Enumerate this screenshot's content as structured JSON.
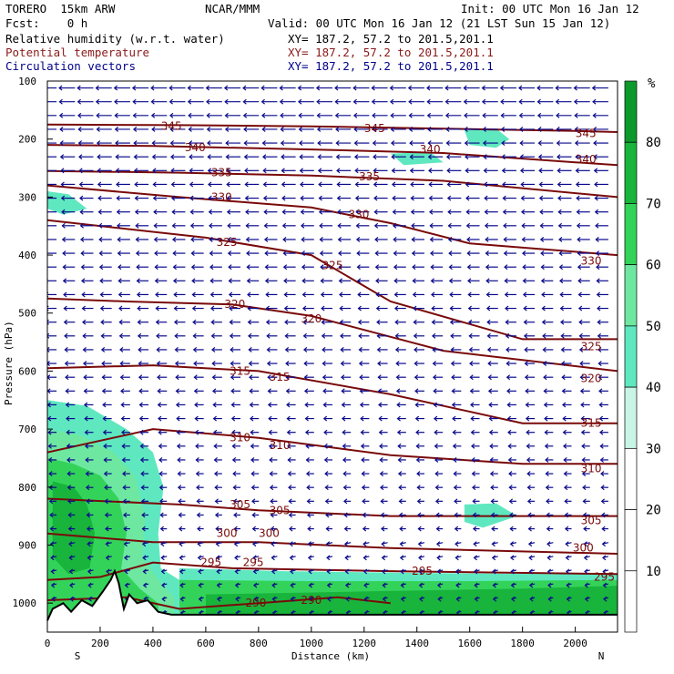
{
  "header": {
    "model": "TORERO  15km ARW",
    "org": "NCAR/MMM",
    "init": "Init: 00 UTC Mon 16 Jan 12",
    "fcst": "Fcst:    0 h",
    "valid": "Valid: 00 UTC Mon 16 Jan 12 (21 LST Sun 15 Jan 12)",
    "fields": [
      {
        "label": "Relative humidity (w.r.t. water)",
        "xy": "XY= 187.2, 57.2 to 201.5,201.1",
        "color": "#000000"
      },
      {
        "label": "Potential temperature",
        "xy": "XY= 187.2, 57.2 to 201.5,201.1",
        "color": "#8b1a1a"
      },
      {
        "label": "Circulation vectors",
        "xy": "XY= 187.2, 57.2 to 201.5,201.1",
        "color": "#00008b"
      }
    ]
  },
  "chart_data": {
    "type": "heatmap",
    "xlabel": "Distance (km)",
    "ylabel": "Pressure (hPa)",
    "xlim": [
      0,
      2160
    ],
    "ylim": [
      1050,
      100
    ],
    "x_ticks": [
      0,
      200,
      400,
      600,
      800,
      1000,
      1200,
      1400,
      1600,
      1800,
      2000
    ],
    "y_ticks": [
      100,
      200,
      300,
      400,
      500,
      600,
      700,
      800,
      900,
      1000
    ],
    "x_end_labels": [
      "S",
      "N"
    ],
    "colorbar": {
      "unit": "%",
      "levels": [
        10,
        20,
        30,
        40,
        50,
        60,
        70,
        80
      ],
      "colors": [
        "#ffffff",
        "#ffffff",
        "#ffffff",
        "#c8f5e6",
        "#5fe8c0",
        "#6ee8a0",
        "#33d35a",
        "#18b43c",
        "#0c9a2c"
      ]
    },
    "colors": {
      "theta": "#7a0a0a",
      "vectors": "#0a0a8c",
      "terrain": "#000000"
    },
    "rh_regions": [
      {
        "level": 40,
        "polygon": [
          [
            0,
            650
          ],
          [
            150,
            660
          ],
          [
            300,
            700
          ],
          [
            400,
            740
          ],
          [
            440,
            800
          ],
          [
            420,
            880
          ],
          [
            430,
            940
          ],
          [
            500,
            960
          ],
          [
            500,
            1030
          ],
          [
            0,
            1030
          ]
        ]
      },
      {
        "level": 50,
        "polygon": [
          [
            0,
            700
          ],
          [
            120,
            710
          ],
          [
            250,
            740
          ],
          [
            330,
            780
          ],
          [
            370,
            850
          ],
          [
            360,
            920
          ],
          [
            420,
            960
          ],
          [
            480,
            990
          ],
          [
            480,
            1030
          ],
          [
            0,
            1030
          ]
        ]
      },
      {
        "level": 60,
        "polygon": [
          [
            0,
            750
          ],
          [
            100,
            760
          ],
          [
            200,
            780
          ],
          [
            270,
            820
          ],
          [
            300,
            880
          ],
          [
            280,
            940
          ],
          [
            350,
            975
          ],
          [
            420,
            1000
          ],
          [
            420,
            1030
          ],
          [
            0,
            1030
          ]
        ]
      },
      {
        "level": 70,
        "polygon": [
          [
            20,
            790
          ],
          [
            100,
            800
          ],
          [
            150,
            830
          ],
          [
            180,
            880
          ],
          [
            160,
            940
          ],
          [
            80,
            950
          ],
          [
            20,
            920
          ]
        ]
      },
      {
        "level": 40,
        "polygon": [
          [
            500,
            940
          ],
          [
            900,
            945
          ],
          [
            1400,
            948
          ],
          [
            1900,
            950
          ],
          [
            2160,
            950
          ],
          [
            2160,
            1030
          ],
          [
            500,
            1030
          ]
        ]
      },
      {
        "level": 60,
        "polygon": [
          [
            500,
            960
          ],
          [
            1000,
            962
          ],
          [
            1600,
            962
          ],
          [
            2160,
            960
          ],
          [
            2160,
            1030
          ],
          [
            500,
            1030
          ]
        ]
      },
      {
        "level": 70,
        "polygon": [
          [
            600,
            985
          ],
          [
            1200,
            980
          ],
          [
            1800,
            975
          ],
          [
            2160,
            970
          ],
          [
            2160,
            1030
          ],
          [
            600,
            1030
          ]
        ]
      },
      {
        "level": 40,
        "polygon": [
          [
            1580,
            185
          ],
          [
            1700,
            182
          ],
          [
            1750,
            200
          ],
          [
            1700,
            215
          ],
          [
            1600,
            210
          ]
        ]
      },
      {
        "level": 40,
        "polygon": [
          [
            1300,
            225
          ],
          [
            1450,
            222
          ],
          [
            1500,
            240
          ],
          [
            1350,
            245
          ]
        ]
      },
      {
        "level": 40,
        "polygon": [
          [
            0,
            290
          ],
          [
            80,
            295
          ],
          [
            150,
            320
          ],
          [
            60,
            330
          ],
          [
            0,
            320
          ]
        ]
      },
      {
        "level": 40,
        "polygon": [
          [
            1580,
            830
          ],
          [
            1700,
            828
          ],
          [
            1780,
            850
          ],
          [
            1650,
            870
          ],
          [
            1580,
            860
          ]
        ]
      }
    ],
    "theta_contours": [
      {
        "value": 345,
        "points": [
          [
            0,
            175
          ],
          [
            500,
            176
          ],
          [
            1000,
            178
          ],
          [
            1500,
            182
          ],
          [
            2000,
            186
          ],
          [
            2160,
            188
          ]
        ],
        "labels": [
          [
            470,
            178
          ],
          [
            1240,
            182
          ],
          [
            2040,
            190
          ]
        ]
      },
      {
        "value": 340,
        "points": [
          [
            0,
            210
          ],
          [
            400,
            212
          ],
          [
            1000,
            218
          ],
          [
            1500,
            224
          ],
          [
            2000,
            240
          ],
          [
            2160,
            245
          ]
        ],
        "labels": [
          [
            560,
            215
          ],
          [
            1450,
            218
          ],
          [
            2040,
            235
          ]
        ]
      },
      {
        "value": 335,
        "points": [
          [
            0,
            255
          ],
          [
            500,
            258
          ],
          [
            1000,
            263
          ],
          [
            1500,
            272
          ],
          [
            2160,
            300
          ]
        ],
        "labels": [
          [
            660,
            258
          ],
          [
            1220,
            265
          ]
        ]
      },
      {
        "value": 330,
        "points": [
          [
            0,
            280
          ],
          [
            500,
            300
          ],
          [
            1000,
            318
          ],
          [
            1300,
            345
          ],
          [
            1600,
            380
          ],
          [
            2160,
            400
          ]
        ],
        "labels": [
          [
            660,
            300
          ],
          [
            1180,
            330
          ],
          [
            2060,
            410
          ]
        ]
      },
      {
        "value": 325,
        "points": [
          [
            0,
            340
          ],
          [
            600,
            370
          ],
          [
            1000,
            400
          ],
          [
            1300,
            480
          ],
          [
            1800,
            545
          ],
          [
            2160,
            545
          ]
        ],
        "labels": [
          [
            680,
            378
          ],
          [
            1080,
            418
          ],
          [
            2060,
            558
          ]
        ]
      },
      {
        "value": 320,
        "points": [
          [
            0,
            475
          ],
          [
            300,
            480
          ],
          [
            700,
            485
          ],
          [
            1000,
            505
          ],
          [
            1500,
            565
          ],
          [
            2160,
            600
          ]
        ],
        "labels": [
          [
            710,
            485
          ],
          [
            1000,
            510
          ],
          [
            2060,
            613
          ]
        ]
      },
      {
        "value": 315,
        "points": [
          [
            0,
            595
          ],
          [
            400,
            590
          ],
          [
            800,
            600
          ],
          [
            1300,
            640
          ],
          [
            1800,
            690
          ],
          [
            2160,
            690
          ]
        ],
        "labels": [
          [
            730,
            600
          ],
          [
            880,
            610
          ],
          [
            2060,
            690
          ]
        ]
      },
      {
        "value": 310,
        "points": [
          [
            0,
            740
          ],
          [
            400,
            700
          ],
          [
            800,
            715
          ],
          [
            1300,
            745
          ],
          [
            1800,
            760
          ],
          [
            2160,
            760
          ]
        ],
        "labels": [
          [
            730,
            715
          ],
          [
            880,
            728
          ],
          [
            2060,
            768
          ]
        ]
      },
      {
        "value": 305,
        "points": [
          [
            0,
            820
          ],
          [
            500,
            830
          ],
          [
            800,
            840
          ],
          [
            1300,
            850
          ],
          [
            2160,
            850
          ]
        ],
        "labels": [
          [
            730,
            830
          ],
          [
            880,
            840
          ],
          [
            2060,
            858
          ]
        ]
      },
      {
        "value": 300,
        "points": [
          [
            0,
            880
          ],
          [
            400,
            895
          ],
          [
            800,
            895
          ],
          [
            1300,
            905
          ],
          [
            2160,
            915
          ]
        ],
        "labels": [
          [
            680,
            880
          ],
          [
            840,
            880
          ],
          [
            2030,
            905
          ]
        ]
      },
      {
        "value": 295,
        "points": [
          [
            0,
            960
          ],
          [
            200,
            955
          ],
          [
            400,
            930
          ],
          [
            700,
            940
          ],
          [
            1300,
            945
          ],
          [
            2160,
            950
          ]
        ],
        "labels": [
          [
            620,
            930
          ],
          [
            780,
            930
          ],
          [
            1420,
            945
          ],
          [
            2110,
            955
          ]
        ]
      },
      {
        "value": 290,
        "points": [
          [
            0,
            995
          ],
          [
            300,
            990
          ],
          [
            500,
            1010
          ],
          [
            800,
            1000
          ],
          [
            1100,
            990
          ],
          [
            1300,
            1000
          ]
        ],
        "labels": [
          [
            790,
            1000
          ],
          [
            1000,
            995
          ]
        ]
      }
    ],
    "vector_grid": {
      "columns": 31,
      "rows": 40,
      "upper_speed": 1.0,
      "lower_speed": 0.25
    },
    "terrain": [
      [
        0,
        1030
      ],
      [
        20,
        1010
      ],
      [
        60,
        1000
      ],
      [
        90,
        1015
      ],
      [
        130,
        995
      ],
      [
        170,
        1005
      ],
      [
        210,
        980
      ],
      [
        240,
        960
      ],
      [
        255,
        945
      ],
      [
        270,
        965
      ],
      [
        290,
        1010
      ],
      [
        310,
        985
      ],
      [
        340,
        1000
      ],
      [
        380,
        995
      ],
      [
        420,
        1015
      ],
      [
        470,
        1020
      ],
      [
        2160,
        1020
      ]
    ]
  }
}
